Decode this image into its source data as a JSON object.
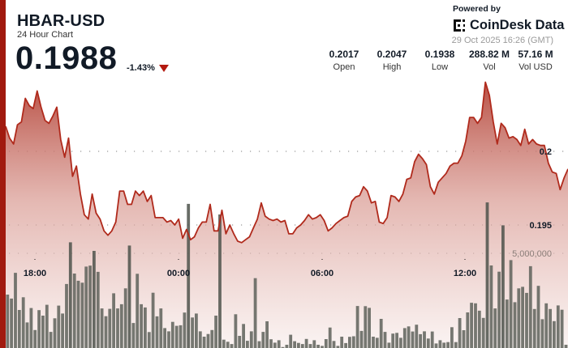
{
  "header": {
    "title": "HBAR-USD",
    "subtitle": "24 Hour Chart",
    "price": "0.1988",
    "change": "-1.43%",
    "change_direction": "down",
    "powered_by": "Powered by",
    "brand": "CoinDesk Data",
    "timestamp": "29 Oct 2025 16:26 (GMT)"
  },
  "stats": [
    {
      "value": "0.2017",
      "label": "Open"
    },
    {
      "value": "0.2047",
      "label": "High"
    },
    {
      "value": "0.1938",
      "label": "Low"
    },
    {
      "value": "288.82 M",
      "label": "Vol"
    },
    {
      "value": "57.16 M",
      "label": "Vol USD"
    }
  ],
  "colors": {
    "accent": "#a11a0f",
    "line": "#b02a1c",
    "volume": "#5e615a",
    "down": "#b3190f"
  },
  "chart_data": {
    "type": "line",
    "price_ylim": [
      0.1925,
      0.2065
    ],
    "price_ticks": [
      {
        "value": 0.2,
        "label": "0.2"
      },
      {
        "value": 0.195,
        "label": "0.195"
      }
    ],
    "volume_ticks": [
      {
        "value": 5000000,
        "label": "5,000,000"
      }
    ],
    "x_ticks": [
      "18:00",
      "00:00",
      "06:00",
      "12:00"
    ],
    "grid": true,
    "series": [
      {
        "type": "area",
        "values": [
          0.2017,
          0.2009,
          0.2005,
          0.2018,
          0.202,
          0.2036,
          0.2031,
          0.2029,
          0.2041,
          0.203,
          0.2021,
          0.2019,
          0.2024,
          0.203,
          0.2008,
          0.1996,
          0.2009,
          0.1983,
          0.199,
          0.1971,
          0.1957,
          0.1954,
          0.1971,
          0.1958,
          0.1954,
          0.1946,
          0.1943,
          0.1946,
          0.1952,
          0.1973,
          0.1973,
          0.1964,
          0.1964,
          0.1973,
          0.197,
          0.1973,
          0.1966,
          0.197,
          0.1955,
          0.1955,
          0.1955,
          0.1952,
          0.1953,
          0.195,
          0.1954,
          0.1941,
          0.1947,
          0.194,
          0.1942,
          0.1948,
          0.1952,
          0.1952,
          0.1964,
          0.1946,
          0.1946,
          0.196,
          0.1944,
          0.195,
          0.1944,
          0.1939,
          0.1938,
          0.194,
          0.1942,
          0.1948,
          0.1954,
          0.1965,
          0.1956,
          0.1954,
          0.1953,
          0.1954,
          0.1952,
          0.1953,
          0.1944,
          0.1944,
          0.1948,
          0.195,
          0.1953,
          0.1957,
          0.1954,
          0.1955,
          0.1957,
          0.1953,
          0.1946,
          0.1948,
          0.1951,
          0.1953,
          0.1955,
          0.1956,
          0.1966,
          0.1969,
          0.197,
          0.1976,
          0.1973,
          0.1965,
          0.1966,
          0.1952,
          0.1951,
          0.1955,
          0.197,
          0.1969,
          0.1966,
          0.1971,
          0.1981,
          0.1982,
          0.1993,
          0.1998,
          0.1995,
          0.1991,
          0.1976,
          0.1971,
          0.1979,
          0.1982,
          0.1985,
          0.199,
          0.1992,
          0.1992,
          0.1997,
          0.2007,
          0.2023,
          0.2023,
          0.2019,
          0.2023,
          0.2047,
          0.2038,
          0.202,
          0.2005,
          0.2019,
          0.2016,
          0.2009,
          0.201,
          0.2008,
          0.2004,
          0.2015,
          0.2005,
          0.2008,
          0.2005,
          0.2004,
          0.2004,
          0.1992,
          0.1986,
          0.1985,
          0.1974,
          0.1982,
          0.1988
        ]
      },
      {
        "type": "bar",
        "unit": "millions",
        "values": [
          2.82,
          2.61,
          3.97,
          2.01,
          2.68,
          1.35,
          2.11,
          0.95,
          2.0,
          1.71,
          2.28,
          0.85,
          1.57,
          2.24,
          1.82,
          3.38,
          5.58,
          3.93,
          3.55,
          3.45,
          4.3,
          4.35,
          5.13,
          4.02,
          2.09,
          1.68,
          2.07,
          2.89,
          2.09,
          2.31,
          3.15,
          5.41,
          1.32,
          3.92,
          2.31,
          2.14,
          0.84,
          2.92,
          1.67,
          2.09,
          1.05,
          0.88,
          1.38,
          1.17,
          1.2,
          1.87,
          7.61,
          1.61,
          1.82,
          0.88,
          0.6,
          0.74,
          0.95,
          1.71,
          7.05,
          0.44,
          0.33,
          0.21,
          1.78,
          0.64,
          1.27,
          0.38,
          0.88,
          3.69,
          0.36,
          0.85,
          1.41,
          0.46,
          0.28,
          0.41,
          0.05,
          0.17,
          0.7,
          0.36,
          0.27,
          0.21,
          0.48,
          0.21,
          0.41,
          0.17,
          0.11,
          0.47,
          1.08,
          0.37,
          0.11,
          0.6,
          0.26,
          0.59,
          0.62,
          2.22,
          0.9,
          2.21,
          2.12,
          0.6,
          0.54,
          1.54,
          0.85,
          0.28,
          0.76,
          0.8,
          0.54,
          1.05,
          1.14,
          0.87,
          1.23,
          0.73,
          0.88,
          0.5,
          0.87,
          0.24,
          0.41,
          0.28,
          0.31,
          1.1,
          0.31,
          1.58,
          0.94,
          1.88,
          2.39,
          2.36,
          1.97,
          1.59,
          7.69,
          4.36,
          2.09,
          4.03,
          6.48,
          2.56,
          4.64,
          2.42,
          3.15,
          3.23,
          2.91,
          4.32,
          2.06,
          3.28,
          1.52,
          2.36,
          2.06,
          1.42,
          2.25,
          2.02,
          0.17
        ]
      }
    ]
  }
}
